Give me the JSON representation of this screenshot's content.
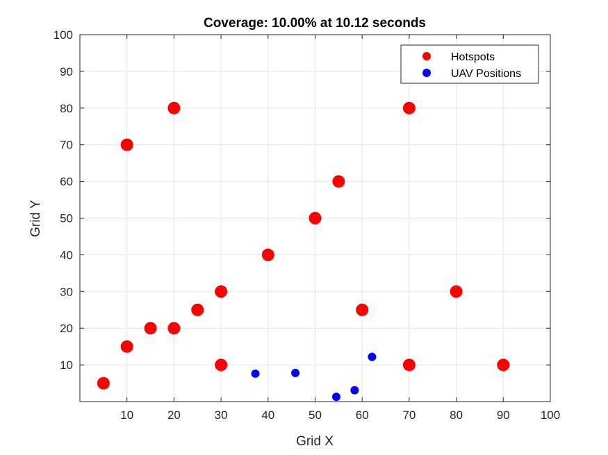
{
  "chart_data": {
    "type": "scatter",
    "title": "Coverage: 10.00% at 10.12 seconds",
    "xlabel": "Grid X",
    "ylabel": "Grid Y",
    "xlim": [
      0,
      100
    ],
    "ylim": [
      0,
      100
    ],
    "xticks": [
      10,
      20,
      30,
      40,
      50,
      60,
      70,
      80,
      90,
      100
    ],
    "yticks": [
      10,
      20,
      30,
      40,
      50,
      60,
      70,
      80,
      90,
      100
    ],
    "grid": true,
    "legend_position": "top-right",
    "series": [
      {
        "name": "Hotspots",
        "color": "#ff0000",
        "marker_size": "large",
        "points": [
          {
            "x": 5,
            "y": 5
          },
          {
            "x": 10,
            "y": 15
          },
          {
            "x": 15,
            "y": 20
          },
          {
            "x": 20,
            "y": 20
          },
          {
            "x": 25,
            "y": 25
          },
          {
            "x": 30,
            "y": 30
          },
          {
            "x": 30,
            "y": 10
          },
          {
            "x": 40,
            "y": 40
          },
          {
            "x": 50,
            "y": 50
          },
          {
            "x": 55,
            "y": 60
          },
          {
            "x": 60,
            "y": 25
          },
          {
            "x": 70,
            "y": 10
          },
          {
            "x": 80,
            "y": 30
          },
          {
            "x": 90,
            "y": 10
          },
          {
            "x": 10,
            "y": 70
          },
          {
            "x": 20,
            "y": 80
          },
          {
            "x": 70,
            "y": 80
          }
        ]
      },
      {
        "name": "UAV Positions",
        "color": "#0000ff",
        "marker_size": "small",
        "points": [
          {
            "x": 37.3,
            "y": 7.6
          },
          {
            "x": 45.8,
            "y": 7.8
          },
          {
            "x": 54.5,
            "y": 1.3
          },
          {
            "x": 58.4,
            "y": 3.1
          },
          {
            "x": 62.1,
            "y": 12.2
          }
        ]
      }
    ]
  }
}
